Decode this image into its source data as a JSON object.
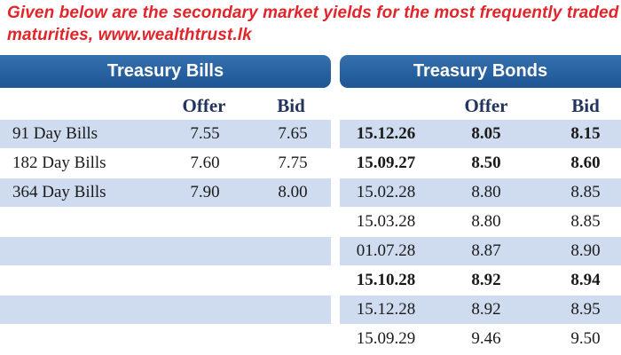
{
  "caption": "Given below are the secondary market yields for the most frequently traded maturities, www.wealthtrust.lk",
  "bills": {
    "title": "Treasury Bills",
    "col_offer": "Offer",
    "col_bid": "Bid",
    "rows": [
      {
        "name": "91 Day Bills",
        "offer": "7.55",
        "bid": "7.65"
      },
      {
        "name": "182 Day Bills",
        "offer": "7.60",
        "bid": "7.75"
      },
      {
        "name": "364 Day Bills",
        "offer": "7.90",
        "bid": "8.00"
      }
    ]
  },
  "bonds": {
    "title": "Treasury Bonds",
    "col_offer": "Offer",
    "col_bid": "Bid",
    "rows": [
      {
        "maturity": "15.12.26",
        "offer": "8.05",
        "bid": "8.15",
        "bold": true
      },
      {
        "maturity": "15.09.27",
        "offer": "8.50",
        "bid": "8.60",
        "bold": true
      },
      {
        "maturity": "15.02.28",
        "offer": "8.80",
        "bid": "8.85",
        "bold": false
      },
      {
        "maturity": "15.03.28",
        "offer": "8.80",
        "bid": "8.85",
        "bold": false
      },
      {
        "maturity": "01.07.28",
        "offer": "8.87",
        "bid": "8.90",
        "bold": false
      },
      {
        "maturity": "15.10.28",
        "offer": "8.92",
        "bid": "8.94",
        "bold": true
      },
      {
        "maturity": "15.12.28",
        "offer": "8.92",
        "bid": "8.95",
        "bold": false
      },
      {
        "maturity": "15.09.29",
        "offer": "9.46",
        "bid": "9.50",
        "bold": false
      }
    ]
  },
  "colors": {
    "caption": "#e0252b",
    "header_blue": "#1e5594",
    "row_shade": "#cfdbee"
  }
}
